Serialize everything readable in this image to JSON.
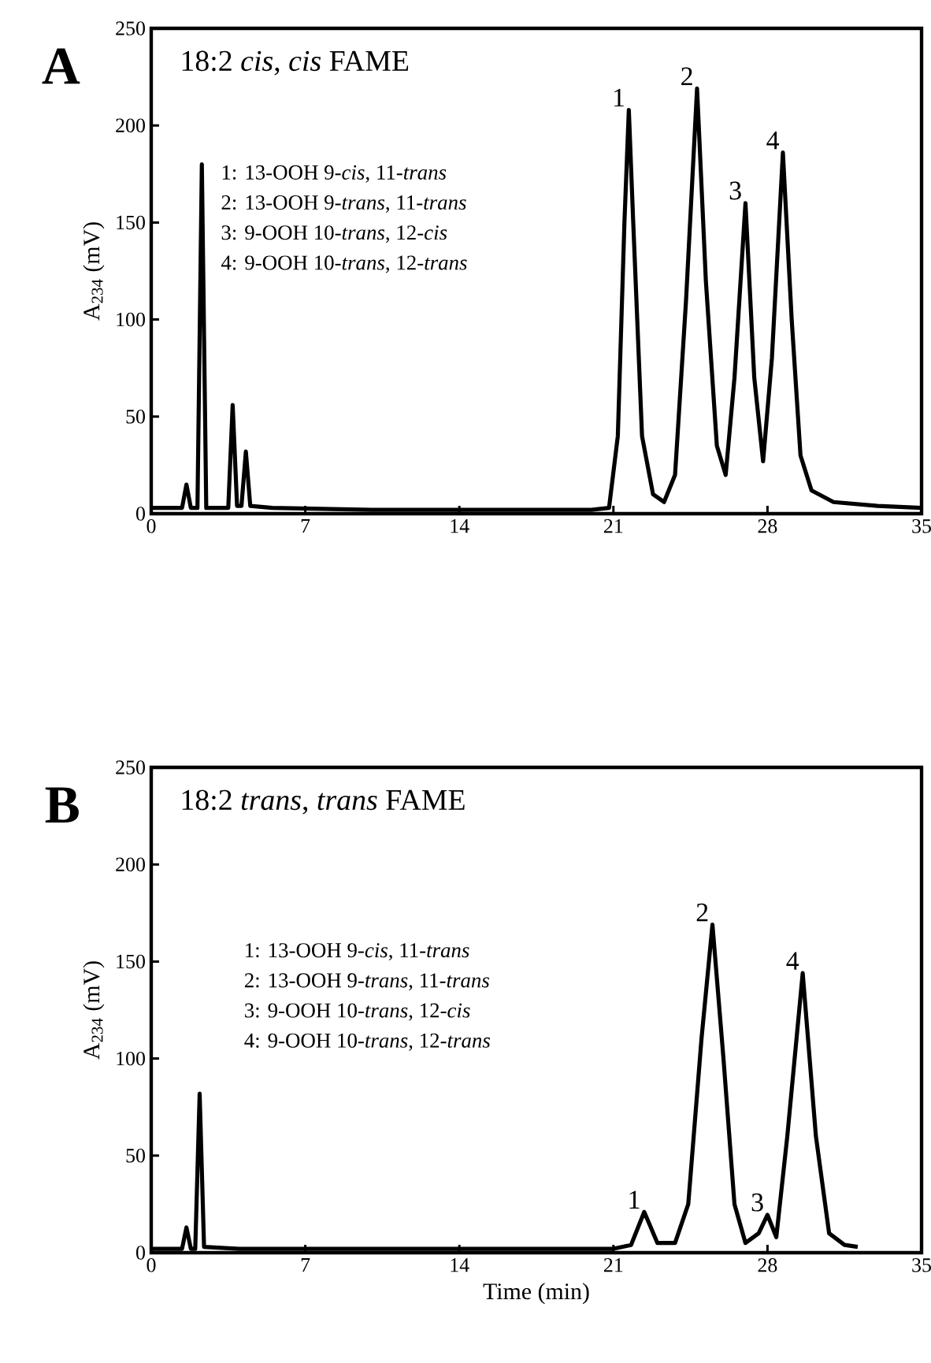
{
  "chart_data": [
    {
      "type": "line",
      "title": "A",
      "subtitle": "18:2 *cis*, *cis* FAME",
      "ylabel": "A$_{234}$ (mV)",
      "color": "#000000",
      "x": [
        0,
        1.4,
        1.6,
        1.8,
        2.1,
        2.3,
        2.5,
        3.5,
        3.7,
        3.9,
        4.1,
        4.3,
        4.5,
        5.5,
        10,
        14,
        20,
        20.8,
        21.2,
        21.5,
        21.7,
        21.9,
        22.3,
        22.8,
        23.3,
        23.8,
        24.3,
        24.8,
        25.2,
        25.7,
        26.1,
        26.5,
        27.0,
        27.4,
        27.8,
        28.2,
        28.7,
        29.1,
        29.5,
        30,
        31,
        33,
        35
      ],
      "values": [
        3,
        3,
        15,
        3,
        3,
        180,
        3,
        3,
        56,
        4,
        4,
        32,
        4,
        3,
        2,
        2,
        2,
        3,
        40,
        150,
        208,
        150,
        40,
        10,
        6,
        20,
        110,
        219,
        120,
        35,
        20,
        70,
        160,
        70,
        27,
        80,
        186,
        100,
        30,
        12,
        6,
        4,
        3
      ],
      "xlim": [
        0,
        35
      ],
      "xticks": [
        0,
        7,
        14,
        21,
        28,
        35
      ],
      "ylim": [
        0,
        250
      ],
      "yticks": [
        0,
        50,
        100,
        150,
        200,
        250
      ],
      "annotations": [
        {
          "text": "1",
          "x": 21.7,
          "y": 208
        },
        {
          "text": "2",
          "x": 24.8,
          "y": 219
        },
        {
          "text": "3",
          "x": 27.0,
          "y": 160
        },
        {
          "text": "4",
          "x": 28.7,
          "y": 186
        },
        "1:  13-OOH 9-*cis*, 11-*trans*",
        "2:  13-OOH 9-*trans*, 11-*trans*",
        "3:  9-OOH 10-*trans*, 12-*cis*",
        "4:  9-OOH 10-*trans*, 12-*trans*"
      ]
    },
    {
      "type": "line",
      "title": "B",
      "subtitle": "18:2 *trans*, *trans* FAME",
      "xlabel": "Time (min)",
      "ylabel": "A$_{234}$ (mV)",
      "color": "#000000",
      "x": [
        0,
        1.4,
        1.6,
        1.8,
        2.0,
        2.2,
        2.4,
        4,
        14,
        21,
        21.8,
        22.4,
        23.0,
        23.8,
        24.4,
        25.0,
        25.5,
        26.0,
        26.5,
        27.0,
        27.6,
        28.0,
        28.4,
        28.9,
        29.6,
        30.2,
        30.8,
        31.5,
        32.1
      ],
      "values": [
        2,
        2,
        13,
        2,
        2,
        82,
        3,
        2,
        2,
        2,
        4,
        21,
        5,
        5,
        25,
        110,
        169,
        100,
        25,
        5,
        10,
        19.5,
        8,
        60,
        144,
        60,
        10,
        4,
        3
      ],
      "xlim": [
        0,
        35
      ],
      "xticks": [
        0,
        7,
        14,
        21,
        28,
        35
      ],
      "ylim": [
        0,
        250
      ],
      "yticks": [
        0,
        50,
        100,
        150,
        200,
        250
      ],
      "annotations": [
        {
          "text": "1",
          "x": 22.4,
          "y": 21
        },
        {
          "text": "2",
          "x": 25.5,
          "y": 169
        },
        {
          "text": "3",
          "x": 28.0,
          "y": 19.5
        },
        {
          "text": "4",
          "x": 29.6,
          "y": 144
        },
        "1:  13-OOH 9-*cis*, 11-*trans*",
        "2:  13-OOH 9-*trans*, 11-*trans*",
        "3:  9-OOH 10-*trans*, 12-*cis*",
        "4:  9-OOH 10-*trans*, 12-*trans*"
      ]
    }
  ]
}
